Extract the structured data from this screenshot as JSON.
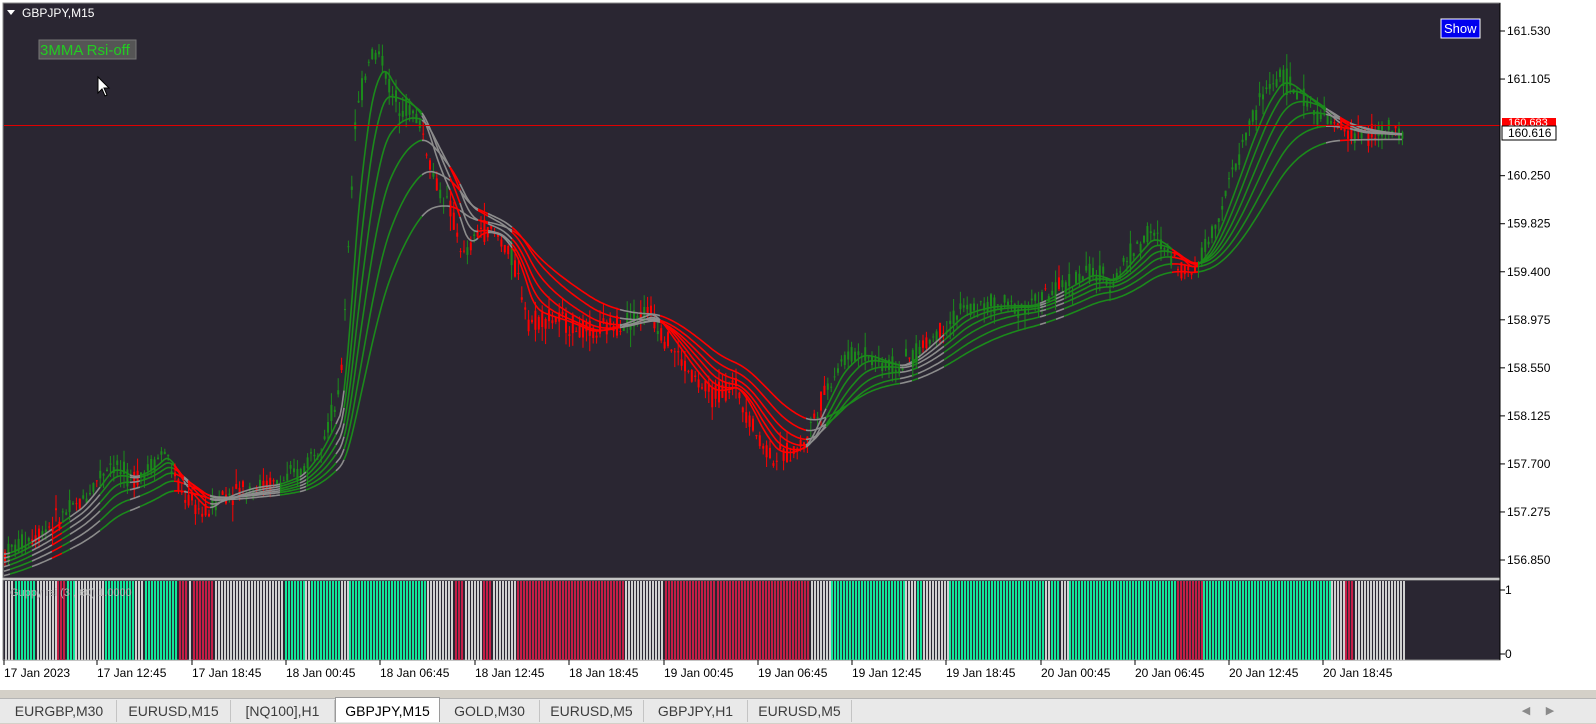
{
  "chart": {
    "symbol_title": "GBPJPY,M15",
    "indicator_label": "3MMA Rsi-off",
    "show_button": "Show",
    "current_price": "160.616",
    "hidden_price": "160.683",
    "price_axis": [
      "161.530",
      "161.105",
      "160.250",
      "159.825",
      "159.400",
      "158.975",
      "158.550",
      "158.125",
      "157.700",
      "157.275",
      "156.850"
    ],
    "time_axis": [
      "17 Jan 2023",
      "17 Jan 12:45",
      "17 Jan 18:45",
      "18 Jan 00:45",
      "18 Jan 06:45",
      "18 Jan 12:45",
      "18 Jan 18:45",
      "19 Jan 00:45",
      "19 Jan 06:45",
      "19 Jan 12:45",
      "19 Jan 18:45",
      "20 Jan 00:45",
      "20 Jan 06:45",
      "20 Jan 12:45",
      "20 Jan 18:45"
    ],
    "sub_label": "Guppy rsi (3 , 60) 1.0000",
    "sub_axis_top": "1",
    "sub_axis_bottom": "0",
    "colors": {
      "bg": "#2a2632",
      "up": "#1b8a1b",
      "down": "#ff0000",
      "neutral": "#8c8c8c",
      "hist_up": "#12e69a",
      "hist_down": "#c41e46",
      "hist_neutral": "#d0d0d0"
    }
  },
  "chart_data": {
    "type": "candlestick",
    "symbol": "GBPJPY",
    "timeframe": "M15",
    "ylim": [
      156.75,
      161.65
    ],
    "price_path": [
      [
        0,
        156.88
      ],
      [
        40,
        157.1
      ],
      [
        80,
        157.35
      ],
      [
        110,
        157.72
      ],
      [
        130,
        157.55
      ],
      [
        150,
        157.68
      ],
      [
        165,
        157.82
      ],
      [
        180,
        157.45
      ],
      [
        205,
        157.25
      ],
      [
        220,
        157.42
      ],
      [
        250,
        157.5
      ],
      [
        275,
        157.52
      ],
      [
        300,
        157.62
      ],
      [
        320,
        157.9
      ],
      [
        340,
        158.3
      ],
      [
        355,
        160.7
      ],
      [
        370,
        161.35
      ],
      [
        382,
        161.3
      ],
      [
        392,
        160.95
      ],
      [
        408,
        160.85
      ],
      [
        420,
        160.72
      ],
      [
        435,
        160.2
      ],
      [
        450,
        159.95
      ],
      [
        465,
        159.5
      ],
      [
        480,
        159.8
      ],
      [
        500,
        159.7
      ],
      [
        515,
        159.45
      ],
      [
        530,
        158.95
      ],
      [
        545,
        159.0
      ],
      [
        565,
        158.95
      ],
      [
        590,
        158.85
      ],
      [
        620,
        158.95
      ],
      [
        650,
        159.05
      ],
      [
        670,
        158.75
      ],
      [
        690,
        158.5
      ],
      [
        710,
        158.3
      ],
      [
        735,
        158.4
      ],
      [
        760,
        157.9
      ],
      [
        775,
        157.75
      ],
      [
        795,
        157.82
      ],
      [
        805,
        157.9
      ],
      [
        820,
        158.25
      ],
      [
        840,
        158.6
      ],
      [
        860,
        158.7
      ],
      [
        880,
        158.6
      ],
      [
        900,
        158.55
      ],
      [
        930,
        158.8
      ],
      [
        960,
        159.05
      ],
      [
        990,
        159.1
      ],
      [
        1030,
        159.1
      ],
      [
        1060,
        159.25
      ],
      [
        1090,
        159.4
      ],
      [
        1110,
        159.3
      ],
      [
        1130,
        159.55
      ],
      [
        1150,
        159.75
      ],
      [
        1170,
        159.55
      ],
      [
        1190,
        159.38
      ],
      [
        1210,
        159.7
      ],
      [
        1230,
        160.2
      ],
      [
        1250,
        160.7
      ],
      [
        1265,
        161.0
      ],
      [
        1280,
        161.15
      ],
      [
        1300,
        160.95
      ],
      [
        1320,
        160.8
      ],
      [
        1340,
        160.65
      ],
      [
        1360,
        160.62
      ],
      [
        1380,
        160.62
      ],
      [
        1403,
        160.62
      ]
    ],
    "ema_bundle_offsets": [
      0.0,
      0.06,
      0.12,
      0.18,
      0.24,
      0.3
    ],
    "subwindow": {
      "title": "Guppy rsi (3 , 60) 1.0000",
      "ylim": [
        0,
        1
      ],
      "segments": [
        [
          0,
          10,
          "n"
        ],
        [
          10,
          32,
          "u"
        ],
        [
          32,
          52,
          "n"
        ],
        [
          52,
          62,
          "d"
        ],
        [
          62,
          70,
          "u"
        ],
        [
          70,
          100,
          "n"
        ],
        [
          100,
          130,
          "u"
        ],
        [
          130,
          140,
          "n"
        ],
        [
          140,
          174,
          "u"
        ],
        [
          174,
          184,
          "d"
        ],
        [
          184,
          188,
          "n"
        ],
        [
          188,
          210,
          "d"
        ],
        [
          210,
          280,
          "n"
        ],
        [
          280,
          300,
          "u"
        ],
        [
          300,
          306,
          "n"
        ],
        [
          306,
          336,
          "u"
        ],
        [
          336,
          344,
          "n"
        ],
        [
          344,
          422,
          "u"
        ],
        [
          422,
          450,
          "n"
        ],
        [
          450,
          460,
          "d"
        ],
        [
          460,
          478,
          "n"
        ],
        [
          478,
          488,
          "d"
        ],
        [
          488,
          512,
          "n"
        ],
        [
          512,
          620,
          "d"
        ],
        [
          620,
          660,
          "n"
        ],
        [
          660,
          712,
          "d"
        ],
        [
          712,
          806,
          "d"
        ],
        [
          806,
          826,
          "n"
        ],
        [
          826,
          900,
          "u"
        ],
        [
          900,
          912,
          "n"
        ],
        [
          912,
          918,
          "u"
        ],
        [
          918,
          944,
          "n"
        ],
        [
          944,
          1040,
          "u"
        ],
        [
          1040,
          1046,
          "n"
        ],
        [
          1046,
          1056,
          "u"
        ],
        [
          1056,
          1064,
          "n"
        ],
        [
          1064,
          1172,
          "u"
        ],
        [
          1172,
          1198,
          "d"
        ],
        [
          1198,
          1326,
          "u"
        ],
        [
          1326,
          1340,
          "n"
        ],
        [
          1340,
          1350,
          "d"
        ],
        [
          1350,
          1403,
          "n"
        ]
      ],
      "legend": "u = rising (green), d = falling (red), n = neutral (grey)"
    }
  },
  "tabs": [
    "EURGBP,M30",
    "EURUSD,M15",
    "[NQ100],H1",
    "GBPJPY,M15",
    "GOLD,M30",
    "EURUSD,M5",
    "GBPJPY,H1",
    "EURUSD,M5"
  ],
  "active_tab": "GBPJPY,M15",
  "icons": {
    "collapse": "triangle-down-icon",
    "cursor": "mouse-pointer-icon",
    "scroll_left": "chevron-left-icon",
    "scroll_right": "chevron-right-icon"
  }
}
